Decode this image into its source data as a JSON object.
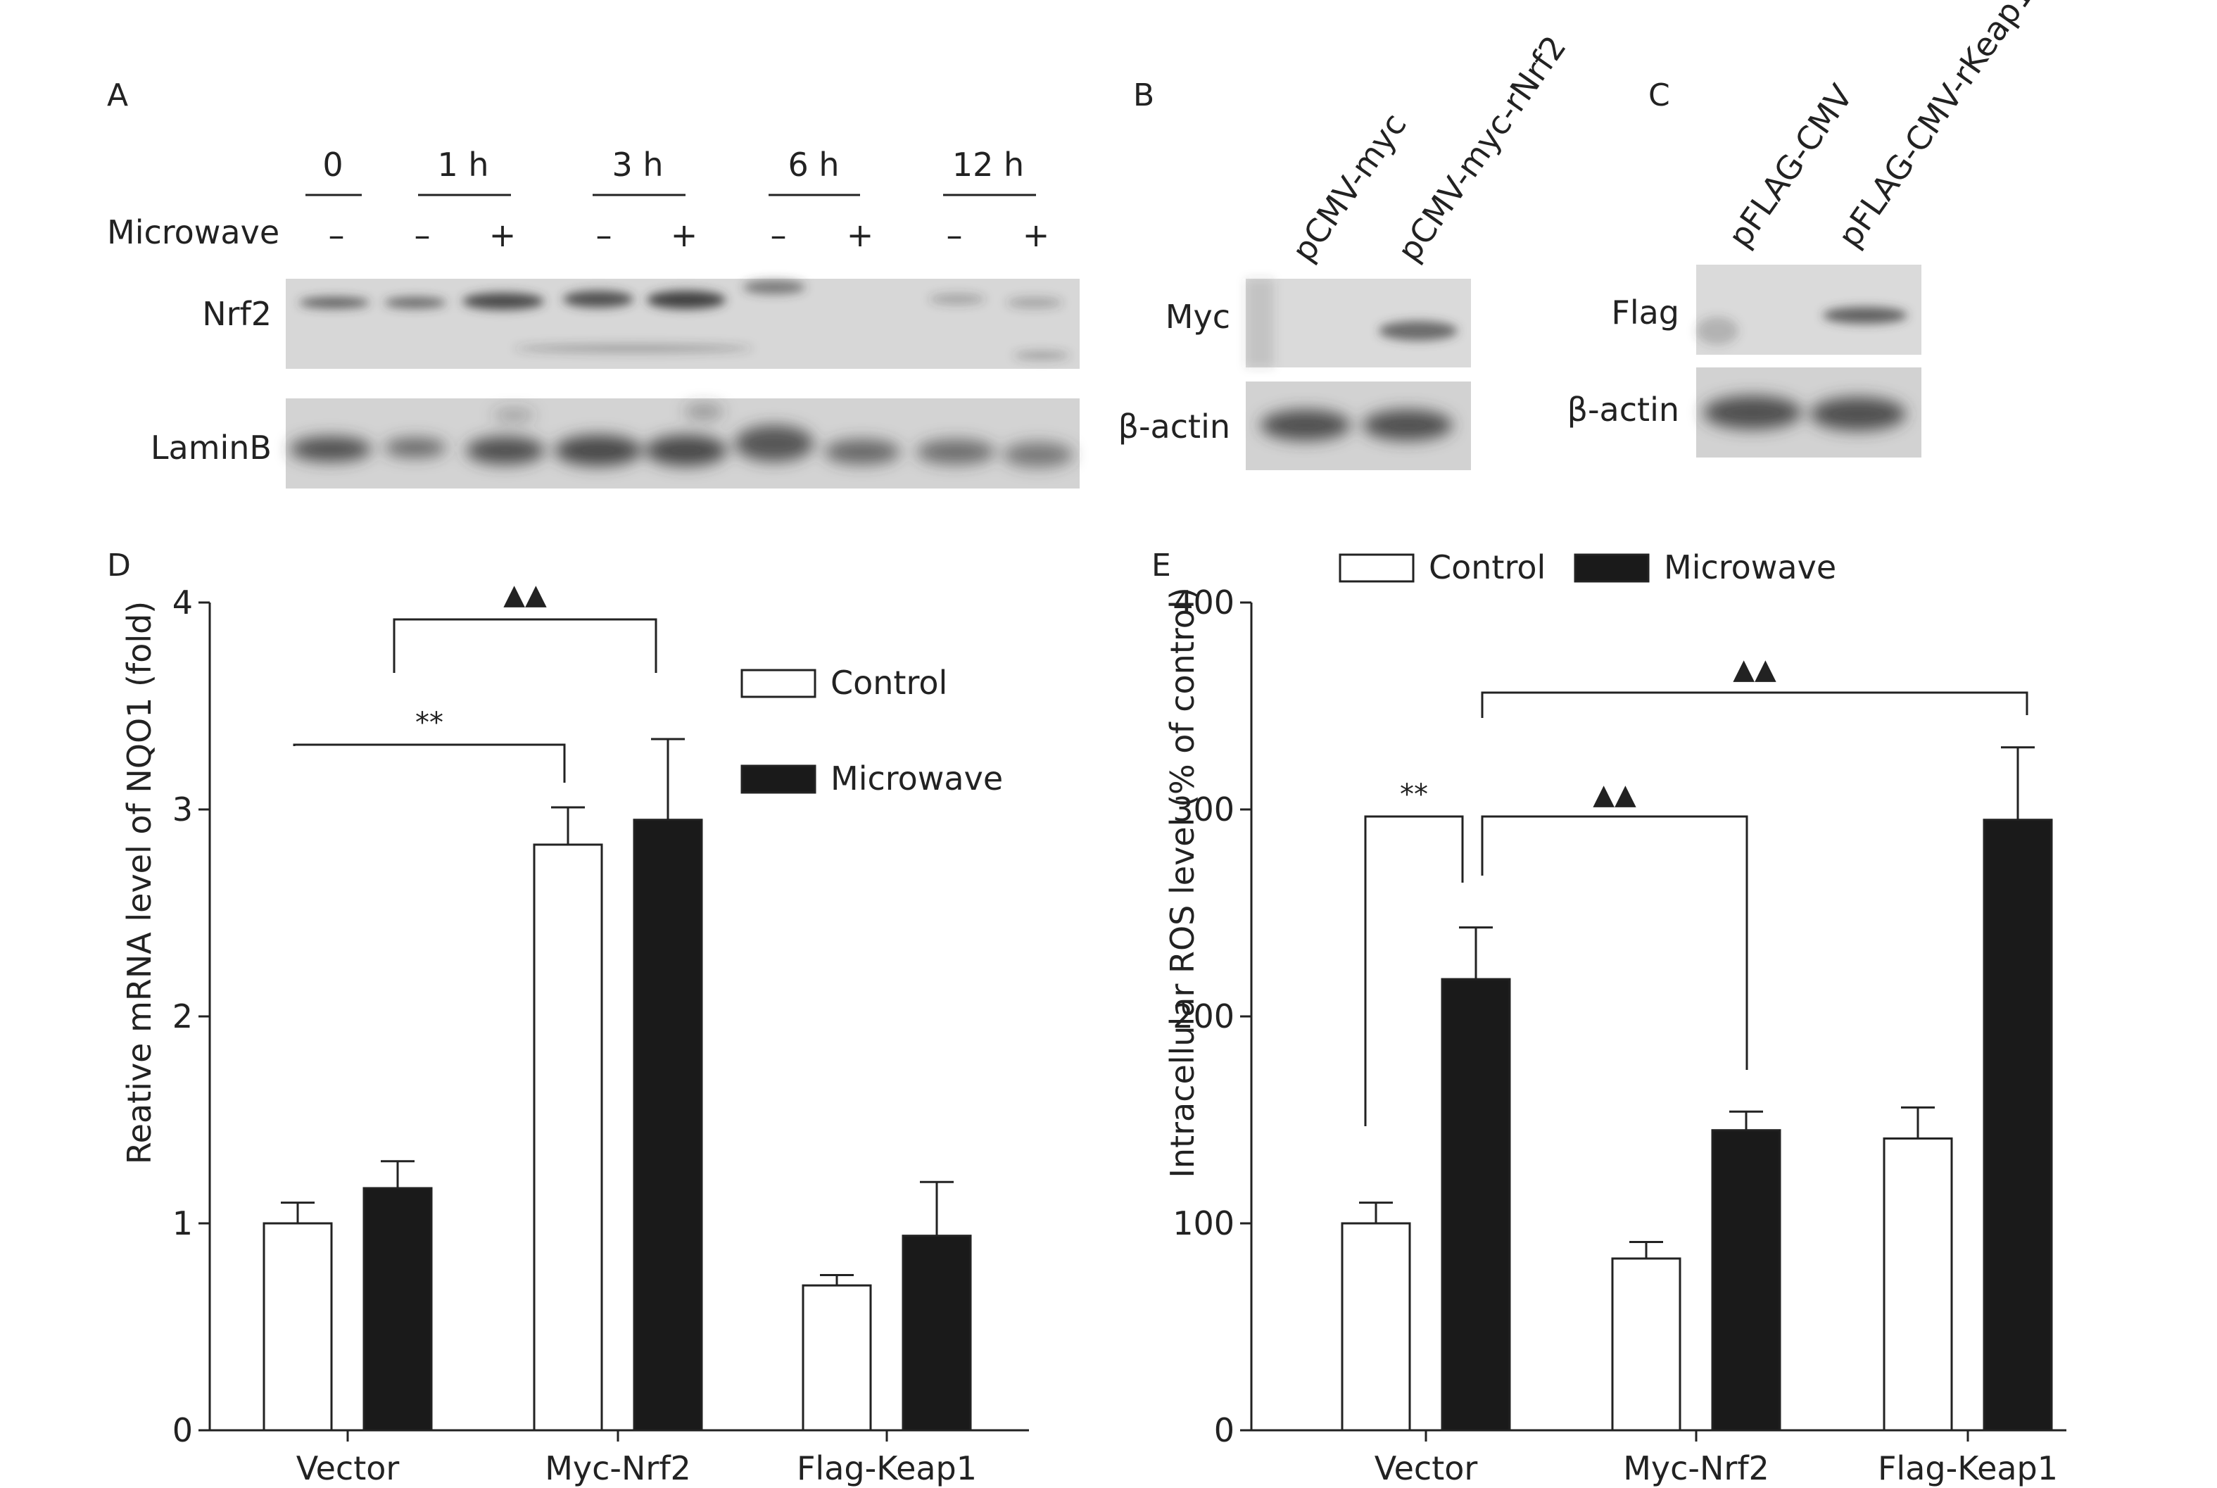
{
  "panels": {
    "A": {
      "letter": "A",
      "time_labels": [
        "0",
        "1 h",
        "3 h",
        "6 h",
        "12 h"
      ],
      "treatment_label": "Microwave",
      "signs": [
        "–",
        "–",
        "+",
        "–",
        "+",
        "–",
        "+",
        "–",
        "+"
      ],
      "rows": [
        "Nrf2",
        "LaminB"
      ]
    },
    "B": {
      "letter": "B",
      "lanes": [
        "pCMV-myc",
        "pCMV-myc-rNrf2"
      ],
      "rows": [
        "Myc",
        "β-actin"
      ]
    },
    "C": {
      "letter": "C",
      "lanes": [
        "pFLAG-CMV",
        "pFLAG-CMV-rKeap1"
      ],
      "rows": [
        "Flag",
        "β-actin"
      ]
    },
    "D": {
      "letter": "D"
    },
    "E": {
      "letter": "E"
    }
  },
  "chart_data": [
    {
      "panel": "D",
      "type": "bar",
      "categories": [
        "Vector",
        "Myc-Nrf2",
        "Flag-Keap1"
      ],
      "series": [
        {
          "name": "Control",
          "values": [
            1.0,
            2.83,
            0.7
          ],
          "errors": [
            0.1,
            0.18,
            0.05
          ],
          "color": "#ffffff"
        },
        {
          "name": "Microwave",
          "values": [
            1.17,
            2.95,
            0.94
          ],
          "errors": [
            0.13,
            0.39,
            0.26
          ],
          "color": "#1a1a1a"
        }
      ],
      "ylabel": "Reative mRNA level of NQO1 (fold)",
      "ylim": [
        0,
        4
      ],
      "yticks": [
        "0",
        "1",
        "2",
        "3",
        "4"
      ],
      "legend_position": "right",
      "annotations": [
        {
          "text": "**",
          "from": "Vector/Control",
          "to": "Myc-Nrf2/Control"
        },
        {
          "text": "▲▲",
          "from": "Vector/Microwave",
          "to": "Myc-Nrf2/Microwave"
        }
      ]
    },
    {
      "panel": "E",
      "type": "bar",
      "categories": [
        "Vector",
        "Myc-Nrf2",
        "Flag-Keap1"
      ],
      "series": [
        {
          "name": "Control",
          "values": [
            100,
            83,
            141
          ],
          "errors": [
            10,
            8,
            15
          ],
          "color": "#ffffff"
        },
        {
          "name": "Microwave",
          "values": [
            218,
            145,
            295
          ],
          "errors": [
            25,
            9,
            35
          ],
          "color": "#1a1a1a"
        }
      ],
      "ylabel": "Intracellular ROS level (% of control)",
      "ylim": [
        0,
        400
      ],
      "yticks": [
        "0",
        "100",
        "200",
        "300",
        "400"
      ],
      "legend_position": "top",
      "annotations": [
        {
          "text": "**",
          "from": "Vector/Control",
          "to": "Vector/Microwave"
        },
        {
          "text": "▲▲",
          "from": "Vector/Microwave",
          "to": "Myc-Nrf2/Microwave"
        },
        {
          "text": "▲▲",
          "from": "Vector/Microwave",
          "to": "Flag-Keap1/Microwave"
        }
      ]
    }
  ]
}
